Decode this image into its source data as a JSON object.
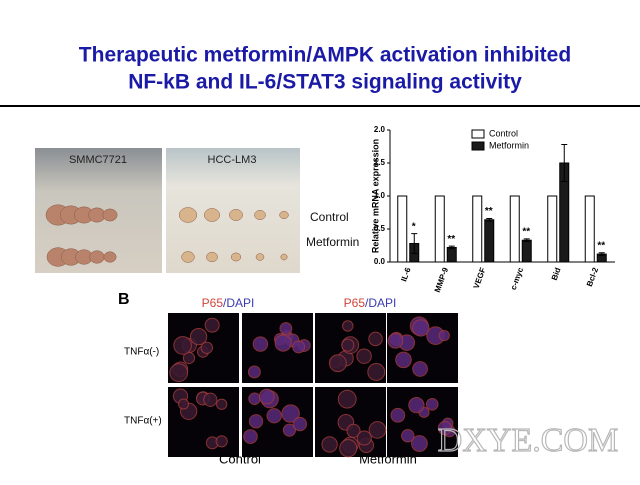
{
  "header": {
    "title_line_1": "Therapeutic metformin/AMPK activation inhibited",
    "title_line_2": "NF-kB and IL-6/STAT3 signaling activity"
  },
  "panel_a": {
    "photo_1_label": "SMMC7721",
    "photo_2_label": "HCC-LM3",
    "row_1_label": "Control",
    "row_2_label": "Metformin"
  },
  "chart_data": {
    "type": "bar",
    "ylabel": "Relative mRNA expression",
    "categories": [
      "IL-6",
      "MMP-9",
      "VEGF",
      "c-myc",
      "Bid",
      "Bcl-2"
    ],
    "series": [
      {
        "name": "Control",
        "color": "#ffffff",
        "values": [
          1.0,
          1.0,
          1.0,
          1.0,
          1.0,
          1.0
        ]
      },
      {
        "name": "Metformin",
        "color": "#1a1a1a",
        "values": [
          0.28,
          0.22,
          0.64,
          0.33,
          1.5,
          0.12
        ],
        "errors": [
          0.15,
          0.02,
          0.02,
          0.02,
          0.28,
          0.02
        ]
      }
    ],
    "annotations": [
      "*",
      "**",
      "**",
      "**",
      null,
      "**"
    ],
    "ylim": [
      0,
      2
    ],
    "yticks": [
      {
        "value": 0,
        "label": "0.0"
      },
      0.5,
      {
        "value": 1,
        "label": "1.0"
      },
      1.5,
      {
        "value": 2,
        "label": "2.0"
      }
    ]
  },
  "panel_b": {
    "letter": "B",
    "columns": [
      {
        "stain_1": "P65",
        "stain_2": "/DAPI"
      },
      {
        "stain_1": "P65",
        "stain_2": "/DAPI"
      }
    ],
    "rows": [
      "TNFα(-)",
      "TNFα(+)"
    ],
    "groups": [
      "Control",
      "Metformin"
    ]
  },
  "watermark": "DXYE.COM"
}
